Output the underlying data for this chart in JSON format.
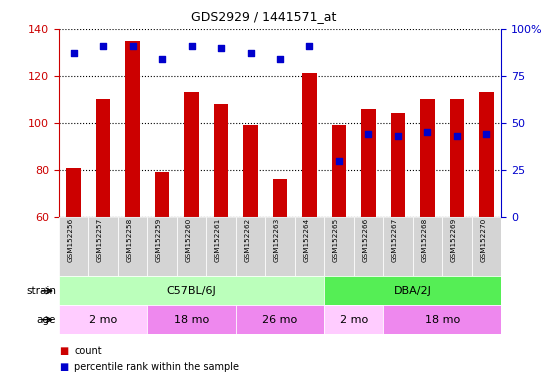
{
  "title": "GDS2929 / 1441571_at",
  "samples": [
    "GSM152256",
    "GSM152257",
    "GSM152258",
    "GSM152259",
    "GSM152260",
    "GSM152261",
    "GSM152262",
    "GSM152263",
    "GSM152264",
    "GSM152265",
    "GSM152266",
    "GSM152267",
    "GSM152268",
    "GSM152269",
    "GSM152270"
  ],
  "count_values": [
    81,
    110,
    135,
    79,
    113,
    108,
    99,
    76,
    121,
    99,
    106,
    104,
    110,
    110,
    113
  ],
  "percentile_values": [
    87,
    91,
    91,
    84,
    91,
    90,
    87,
    84,
    91,
    30,
    44,
    43,
    45,
    43,
    44
  ],
  "bar_bottom": 60,
  "ylim_left": [
    60,
    140
  ],
  "ylim_right": [
    0,
    100
  ],
  "yticks_left": [
    60,
    80,
    100,
    120,
    140
  ],
  "yticks_right": [
    0,
    25,
    50,
    75,
    100
  ],
  "bar_color": "#cc0000",
  "dot_color": "#0000cc",
  "strain_groups": [
    {
      "label": "C57BL/6J",
      "start": 0,
      "end": 9,
      "color": "#bbffbb"
    },
    {
      "label": "DBA/2J",
      "start": 9,
      "end": 15,
      "color": "#55ee55"
    }
  ],
  "age_groups": [
    {
      "label": "2 mo",
      "start": 0,
      "end": 3,
      "color": "#ffccff"
    },
    {
      "label": "18 mo",
      "start": 3,
      "end": 6,
      "color": "#ee88ee"
    },
    {
      "label": "26 mo",
      "start": 6,
      "end": 9,
      "color": "#ee88ee"
    },
    {
      "label": "2 mo",
      "start": 9,
      "end": 11,
      "color": "#ffccff"
    },
    {
      "label": "18 mo",
      "start": 11,
      "end": 15,
      "color": "#ee88ee"
    }
  ],
  "legend_count_label": "count",
  "legend_pct_label": "percentile rank within the sample",
  "strain_label": "strain",
  "age_label": "age",
  "tick_color_left": "#cc0000",
  "tick_color_right": "#0000cc"
}
